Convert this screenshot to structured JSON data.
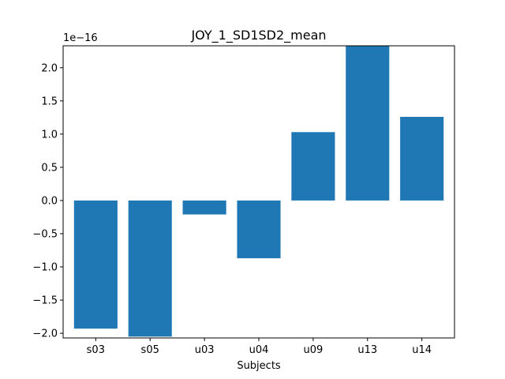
{
  "chart_data": {
    "type": "bar",
    "title": "JOY_1_SD1SD2_mean",
    "xlabel": "Subjects",
    "ylabel": "",
    "y_offset_label": "1e−16",
    "categories": [
      "s03",
      "s05",
      "u03",
      "u04",
      "u09",
      "u13",
      "u14"
    ],
    "values": [
      -1.93,
      -2.05,
      -0.21,
      -0.87,
      1.03,
      2.33,
      1.26
    ],
    "ylim": [
      -2.07,
      2.33
    ],
    "yticks": [
      -2.0,
      -1.5,
      -1.0,
      -0.5,
      0.0,
      0.5,
      1.0,
      1.5,
      2.0
    ],
    "ytick_labels": [
      "−2.0",
      "−1.5",
      "−1.0",
      "−0.5",
      "0.0",
      "0.5",
      "1.0",
      "1.5",
      "2.0"
    ],
    "grid": false,
    "bar_color": "#1f77b4"
  }
}
